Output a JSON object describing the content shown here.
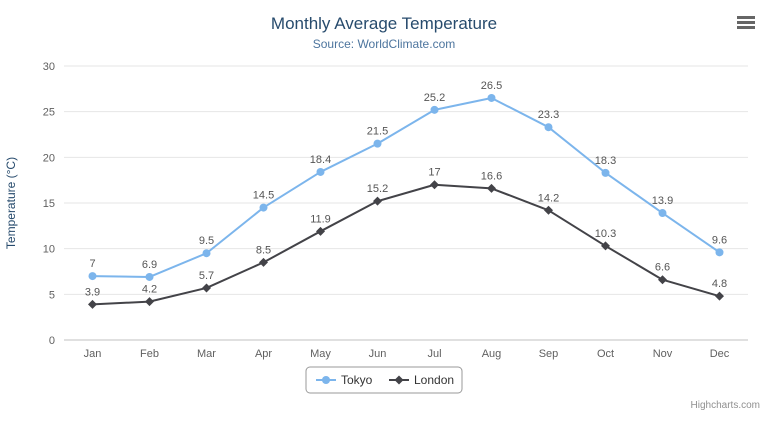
{
  "chart_data": {
    "type": "line",
    "title": "Monthly Average Temperature",
    "subtitle": "Source: WorldClimate.com",
    "categories": [
      "Jan",
      "Feb",
      "Mar",
      "Apr",
      "May",
      "Jun",
      "Jul",
      "Aug",
      "Sep",
      "Oct",
      "Nov",
      "Dec"
    ],
    "series": [
      {
        "name": "Tokyo",
        "color": "#7cb5ec",
        "marker": "circle",
        "values": [
          7,
          6.9,
          9.5,
          14.5,
          18.4,
          21.5,
          25.2,
          26.5,
          23.3,
          18.3,
          13.9,
          9.6
        ]
      },
      {
        "name": "London",
        "color": "#434348",
        "marker": "diamond",
        "values": [
          3.9,
          4.2,
          5.7,
          8.5,
          11.9,
          15.2,
          17,
          16.6,
          14.2,
          10.3,
          6.6,
          4.8
        ]
      }
    ],
    "xlabel": "",
    "ylabel": "Temperature (°C)",
    "ylim": [
      0,
      30
    ],
    "ytick_interval": 5,
    "grid": true,
    "legend_position": "bottom",
    "credits": "Highcharts.com",
    "colors": {
      "grid": "#e6e6e6",
      "axis_line": "#c0c0c0",
      "axis_labels": "#606060",
      "title": "#274b6d",
      "subtitle": "#4d759e",
      "data_labels": "#555555",
      "legend_border": "#999999",
      "credits": "#909090",
      "export_icon": "#666666"
    }
  }
}
